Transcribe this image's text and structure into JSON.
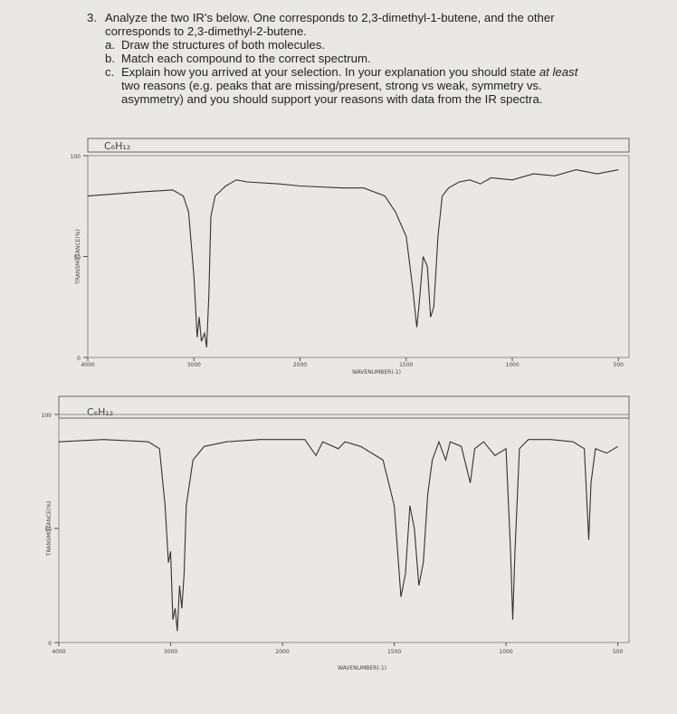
{
  "question": {
    "number": "3.",
    "text": "Analyze the two IR's below. One corresponds to 2,3-dimethyl-1-butene, and the other corresponds to 2,3-dimethyl-2-butene.",
    "parts": [
      {
        "label": "a.",
        "text": [
          "Draw the structures of both molecules."
        ]
      },
      {
        "label": "b.",
        "text": [
          "Match each compound to the correct spectrum."
        ]
      },
      {
        "label": "c.",
        "text": [
          "Explain how you arrived at your selection. In your explanation you should state ",
          "at least",
          " two reasons (e.g. peaks that are missing/present, strong vs weak, symmetry vs. asymmetry) and you should support your reasons with data from the IR spectra."
        ]
      }
    ]
  },
  "chart_data": [
    {
      "type": "line",
      "title": "C₆H₁₂",
      "xlabel": "WAVENUMBER(-1)",
      "ylabel": "TRANSMITTANCE(%)",
      "xlim": [
        4000,
        450
      ],
      "xticks": [
        4000,
        3000,
        2000,
        1500,
        1000,
        500
      ],
      "ylim": [
        0,
        100
      ],
      "yticks": [
        0,
        50,
        100
      ],
      "color": "#333333",
      "x": [
        4000,
        3500,
        3200,
        3100,
        3050,
        3000,
        2970,
        2950,
        2930,
        2900,
        2880,
        2860,
        2840,
        2800,
        2700,
        2600,
        2500,
        2200,
        2000,
        1800,
        1700,
        1600,
        1550,
        1500,
        1470,
        1450,
        1440,
        1420,
        1400,
        1385,
        1370,
        1350,
        1330,
        1300,
        1250,
        1200,
        1150,
        1100,
        1000,
        900,
        800,
        700,
        600,
        500
      ],
      "values": [
        80,
        82,
        83,
        80,
        72,
        40,
        10,
        20,
        8,
        12,
        5,
        30,
        70,
        80,
        85,
        88,
        87,
        86,
        85,
        84,
        84,
        80,
        72,
        60,
        35,
        15,
        25,
        50,
        45,
        20,
        25,
        60,
        80,
        84,
        87,
        88,
        86,
        89,
        88,
        91,
        90,
        93,
        91,
        93
      ]
    },
    {
      "type": "line",
      "title": "C₆H₁₂",
      "xlabel": "WAVENUMBER(-1)",
      "ylabel": "TRANSMITTANCE(%)",
      "xlim": [
        4000,
        450
      ],
      "xticks": [
        4000,
        3000,
        2000,
        1500,
        1000,
        500
      ],
      "ylim": [
        0,
        100
      ],
      "yticks": [
        0,
        50,
        100
      ],
      "color": "#333333",
      "x": [
        4000,
        3600,
        3200,
        3100,
        3050,
        3020,
        3000,
        2980,
        2960,
        2940,
        2920,
        2900,
        2880,
        2860,
        2800,
        2700,
        2500,
        2200,
        2000,
        1900,
        1850,
        1820,
        1750,
        1720,
        1650,
        1550,
        1500,
        1470,
        1450,
        1430,
        1410,
        1390,
        1370,
        1350,
        1330,
        1300,
        1270,
        1250,
        1200,
        1160,
        1140,
        1100,
        1050,
        1000,
        980,
        970,
        960,
        940,
        900,
        800,
        700,
        650,
        630,
        620,
        600,
        550,
        500
      ],
      "values": [
        88,
        89,
        88,
        85,
        60,
        35,
        40,
        10,
        15,
        5,
        25,
        15,
        30,
        60,
        80,
        86,
        88,
        89,
        89,
        89,
        82,
        88,
        85,
        88,
        86,
        80,
        60,
        20,
        30,
        60,
        50,
        25,
        35,
        65,
        80,
        88,
        80,
        88,
        86,
        70,
        85,
        88,
        82,
        85,
        40,
        10,
        40,
        85,
        89,
        89,
        88,
        85,
        45,
        70,
        85,
        83,
        86
      ]
    }
  ]
}
